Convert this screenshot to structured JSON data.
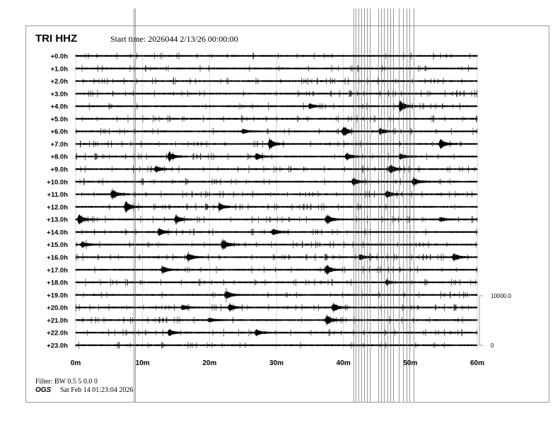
{
  "header": {
    "station": "TRI HHZ",
    "start_time": "Start time: 2026044  2/13/26 00:00:00"
  },
  "footer": {
    "filter": "Filter: BW 0.5 5 0.0 0",
    "org": "OGS",
    "timestamp": "Sat Feb 14 01:23:04 2026"
  },
  "colors": {
    "trace": "#000000",
    "grid": "#bbbbbb",
    "frame": "#999999"
  },
  "chart_data": {
    "type": "line",
    "title": "TRI HHZ",
    "row_labels": [
      "+0.0h",
      "+1.0h",
      "+2.0h",
      "+3.0h",
      "+4.0h",
      "+5.0h",
      "+6.0h",
      "+7.0h",
      "+8.0h",
      "+9.0h",
      "+10.0h",
      "+11.0h",
      "+12.0h",
      "+13.0h",
      "+14.0h",
      "+15.0h",
      "+16.0h",
      "+17.0h",
      "+18.0h",
      "+19.0h",
      "+20.0h",
      "+21.0h",
      "+22.0h",
      "+23.0h"
    ],
    "x_ticks": [
      "0m",
      "10m",
      "20m",
      "30m",
      "40m",
      "50m",
      "60m"
    ],
    "xlim": [
      0,
      60
    ],
    "grid": true,
    "scale_bar": {
      "top": "10000.0",
      "bottom": "0"
    },
    "events": [
      {
        "hour": 4,
        "minute": 48.5,
        "amp": 1.0
      },
      {
        "hour": 4,
        "minute": 35,
        "amp": 0.5
      },
      {
        "hour": 6,
        "minute": 40,
        "amp": 0.9
      },
      {
        "hour": 6,
        "minute": 45.5,
        "amp": 0.6
      },
      {
        "hour": 6,
        "minute": 25,
        "amp": 0.4
      },
      {
        "hour": 7,
        "minute": 29,
        "amp": 1.0
      },
      {
        "hour": 7,
        "minute": 54.5,
        "amp": 0.9
      },
      {
        "hour": 8,
        "minute": 14,
        "amp": 0.9
      },
      {
        "hour": 8,
        "minute": 27,
        "amp": 0.6
      },
      {
        "hour": 8,
        "minute": 40.5,
        "amp": 0.7
      },
      {
        "hour": 8,
        "minute": 48.5,
        "amp": 0.5
      },
      {
        "hour": 9,
        "minute": 12,
        "amp": 0.6
      },
      {
        "hour": 9,
        "minute": 47,
        "amp": 0.9
      },
      {
        "hour": 10,
        "minute": 41.5,
        "amp": 0.7
      },
      {
        "hour": 10,
        "minute": 50.5,
        "amp": 0.8
      },
      {
        "hour": 11,
        "minute": 5.5,
        "amp": 0.9
      },
      {
        "hour": 11,
        "minute": 46.5,
        "amp": 0.7
      },
      {
        "hour": 12,
        "minute": 7.5,
        "amp": 1.0
      },
      {
        "hour": 12,
        "minute": 21.5,
        "amp": 0.6
      },
      {
        "hour": 13,
        "minute": 0.5,
        "amp": 0.9
      },
      {
        "hour": 13,
        "minute": 15,
        "amp": 0.8
      },
      {
        "hour": 13,
        "minute": 37.5,
        "amp": 0.9
      },
      {
        "hour": 13,
        "minute": 54.5,
        "amp": 0.4
      },
      {
        "hour": 14,
        "minute": 12.5,
        "amp": 0.7
      },
      {
        "hour": 14,
        "minute": 29.5,
        "amp": 0.6
      },
      {
        "hour": 15,
        "minute": 1,
        "amp": 0.6
      },
      {
        "hour": 15,
        "minute": 22,
        "amp": 1.0
      },
      {
        "hour": 16,
        "minute": 16.8,
        "amp": 0.7
      },
      {
        "hour": 16,
        "minute": 42.5,
        "amp": 0.5
      },
      {
        "hour": 16,
        "minute": 56.5,
        "amp": 0.7
      },
      {
        "hour": 17,
        "minute": 13,
        "amp": 0.7
      },
      {
        "hour": 17,
        "minute": 37.5,
        "amp": 0.9
      },
      {
        "hour": 18,
        "minute": 46.5,
        "amp": 0.4
      },
      {
        "hour": 19,
        "minute": 22.5,
        "amp": 0.8
      },
      {
        "hour": 20,
        "minute": 16,
        "amp": 0.5
      },
      {
        "hour": 20,
        "minute": 23,
        "amp": 0.7
      },
      {
        "hour": 20,
        "minute": 38.5,
        "amp": 0.8
      },
      {
        "hour": 21,
        "minute": 37.5,
        "amp": 0.9
      },
      {
        "hour": 21,
        "minute": 20,
        "amp": 0.4
      },
      {
        "hour": 22,
        "minute": 14,
        "amp": 0.6
      },
      {
        "hour": 22,
        "minute": 27,
        "amp": 0.6
      }
    ]
  }
}
